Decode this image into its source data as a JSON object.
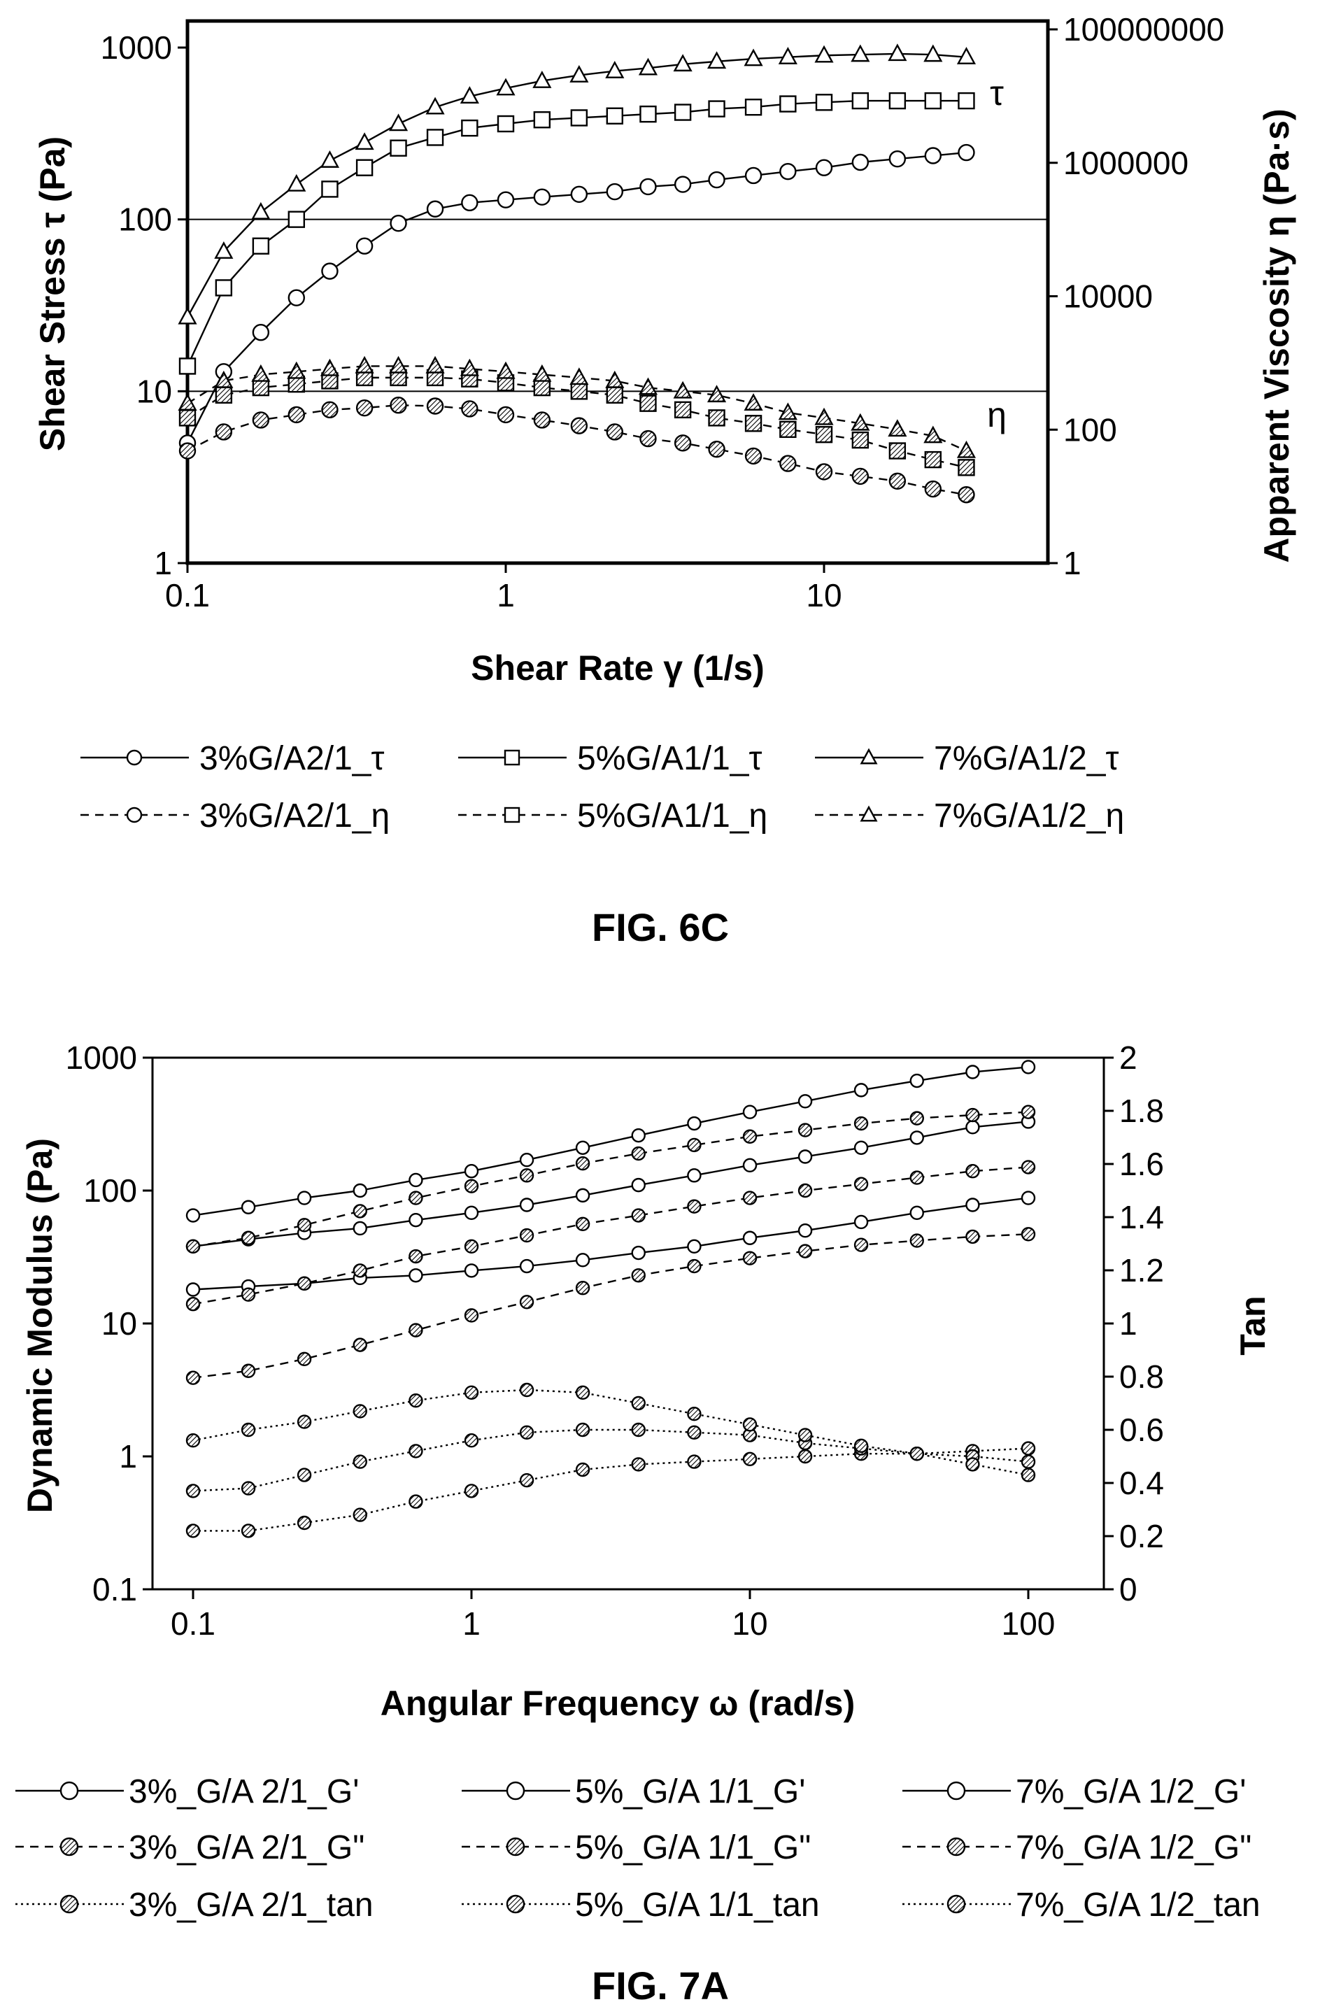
{
  "figures": {
    "fig6c_caption": "FIG. 6C",
    "fig7a_caption": "FIG. 7A"
  },
  "chart_data": [
    {
      "type": "line",
      "xlabel": "Shear Rate γ (1/s)",
      "ylabel": "Shear Stress τ (Pa)",
      "y2label": "Apparent Viscosity η (Pa·s)",
      "xscale": "log",
      "yscale": "log",
      "y2scale": "log",
      "xlim": [
        0.1,
        30
      ],
      "ylim": [
        1,
        1200
      ],
      "y2lim": [
        1,
        100000000
      ],
      "xticks": [
        "0.1",
        "1",
        "10"
      ],
      "yticks": [
        "1",
        "10",
        "100",
        "1000"
      ],
      "y2ticks": [
        "1",
        "100",
        "10000",
        "1000000",
        "100000000"
      ],
      "gridlines_y": [
        10,
        100
      ],
      "annotations": [
        "τ",
        "η"
      ],
      "legend_position": "below",
      "series": [
        {
          "name": "3%G/A2/1_τ",
          "marker": "circle",
          "line": "solid",
          "x": [
            0.1,
            0.13,
            0.17,
            0.22,
            0.28,
            0.36,
            0.46,
            0.6,
            0.77,
            1,
            1.3,
            1.7,
            2.2,
            2.8,
            3.6,
            4.6,
            6,
            7.7,
            10,
            13,
            17,
            22,
            28
          ],
          "y": [
            5,
            13,
            22,
            35,
            50,
            70,
            95,
            115,
            125,
            130,
            135,
            140,
            145,
            155,
            160,
            170,
            180,
            190,
            200,
            215,
            225,
            235,
            245
          ]
        },
        {
          "name": "5%G/A1/1_τ",
          "marker": "square",
          "line": "solid",
          "x": [
            0.1,
            0.13,
            0.17,
            0.22,
            0.28,
            0.36,
            0.46,
            0.6,
            0.77,
            1,
            1.3,
            1.7,
            2.2,
            2.8,
            3.6,
            4.6,
            6,
            7.7,
            10,
            13,
            17,
            22,
            28
          ],
          "y": [
            14,
            40,
            70,
            100,
            150,
            200,
            260,
            300,
            340,
            360,
            380,
            390,
            400,
            410,
            420,
            440,
            450,
            470,
            480,
            490,
            490,
            490,
            490
          ]
        },
        {
          "name": "7%G/A1/2_τ",
          "marker": "triangle",
          "line": "solid",
          "x": [
            0.1,
            0.13,
            0.17,
            0.22,
            0.28,
            0.36,
            0.46,
            0.6,
            0.77,
            1,
            1.3,
            1.7,
            2.2,
            2.8,
            3.6,
            4.6,
            6,
            7.7,
            10,
            13,
            17,
            22,
            28
          ],
          "y": [
            27,
            65,
            110,
            160,
            220,
            280,
            360,
            450,
            520,
            580,
            640,
            690,
            730,
            760,
            800,
            830,
            860,
            880,
            900,
            910,
            920,
            910,
            880
          ]
        },
        {
          "name": "3%G/A2/1_η",
          "marker": "hatched-circle",
          "line": "dashed",
          "x": [
            0.1,
            0.13,
            0.17,
            0.22,
            0.28,
            0.36,
            0.46,
            0.6,
            0.77,
            1,
            1.3,
            1.7,
            2.2,
            2.8,
            3.6,
            4.6,
            6,
            7.7,
            10,
            13,
            17,
            22,
            28
          ],
          "y": [
            4.5,
            5.8,
            6.8,
            7.3,
            7.8,
            8,
            8.3,
            8.2,
            7.9,
            7.3,
            6.8,
            6.3,
            5.8,
            5.3,
            5,
            4.6,
            4.2,
            3.8,
            3.4,
            3.2,
            3,
            2.7,
            2.5
          ]
        },
        {
          "name": "5%G/A1/1_η",
          "marker": "hatched-square",
          "line": "dashed",
          "x": [
            0.1,
            0.13,
            0.17,
            0.22,
            0.28,
            0.36,
            0.46,
            0.6,
            0.77,
            1,
            1.3,
            1.7,
            2.2,
            2.8,
            3.6,
            4.6,
            6,
            7.7,
            10,
            13,
            17,
            22,
            28
          ],
          "y": [
            7,
            9.5,
            10.5,
            11,
            11.5,
            12,
            12,
            12,
            11.8,
            11.2,
            10.5,
            10,
            9.5,
            8.5,
            7.8,
            7,
            6.5,
            6,
            5.6,
            5.2,
            4.5,
            4,
            3.6
          ]
        },
        {
          "name": "7%G/A1/2_η",
          "marker": "hatched-triangle",
          "line": "dashed",
          "x": [
            0.1,
            0.13,
            0.17,
            0.22,
            0.28,
            0.36,
            0.46,
            0.6,
            0.77,
            1,
            1.3,
            1.7,
            2.2,
            2.8,
            3.6,
            4.6,
            6,
            7.7,
            10,
            13,
            17,
            22,
            28
          ],
          "y": [
            8.5,
            11.5,
            12.5,
            13,
            13.5,
            14,
            14,
            14,
            13.5,
            13,
            12.5,
            12,
            11.5,
            10.5,
            10,
            9.5,
            8.5,
            7.5,
            7,
            6.5,
            6,
            5.5,
            4.5
          ]
        }
      ]
    },
    {
      "type": "line",
      "xlabel": "Angular Frequency ω (rad/s)",
      "ylabel": "Dynamic Modulus (Pa)",
      "y2label": "Tan",
      "xscale": "log",
      "yscale": "log",
      "y2scale": "linear",
      "xlim": [
        0.1,
        100
      ],
      "ylim": [
        0.1,
        1000
      ],
      "y2lim": [
        0,
        2
      ],
      "xticks": [
        "0.1",
        "1",
        "10",
        "100"
      ],
      "yticks": [
        "0.1",
        "1",
        "10",
        "100",
        "1000"
      ],
      "y2ticks": [
        "0",
        "0.2",
        "0.4",
        "0.6",
        "0.8",
        "1",
        "1.2",
        "1.4",
        "1.6",
        "1.8",
        "2"
      ],
      "legend_position": "below",
      "series": [
        {
          "name": "3%_G/A 2/1_G'",
          "marker": "circle",
          "line": "solid",
          "axis": "left",
          "x": [
            0.1,
            0.158,
            0.251,
            0.398,
            0.631,
            1,
            1.58,
            2.51,
            3.98,
            6.31,
            10,
            15.8,
            25.1,
            39.8,
            63.1,
            100
          ],
          "y": [
            18,
            19,
            20,
            22,
            23,
            25,
            27,
            30,
            34,
            38,
            44,
            50,
            58,
            68,
            78,
            88
          ]
        },
        {
          "name": "5%_G/A 1/1_G'",
          "marker": "circle",
          "line": "solid",
          "axis": "left",
          "x": [
            0.1,
            0.158,
            0.251,
            0.398,
            0.631,
            1,
            1.58,
            2.51,
            3.98,
            6.31,
            10,
            15.8,
            25.1,
            39.8,
            63.1,
            100
          ],
          "y": [
            38,
            43,
            48,
            52,
            60,
            68,
            78,
            92,
            110,
            130,
            155,
            180,
            210,
            250,
            300,
            330
          ]
        },
        {
          "name": "7%_G/A 1/2_G'",
          "marker": "circle",
          "line": "solid",
          "axis": "left",
          "x": [
            0.1,
            0.158,
            0.251,
            0.398,
            0.631,
            1,
            1.58,
            2.51,
            3.98,
            6.31,
            10,
            15.8,
            25.1,
            39.8,
            63.1,
            100
          ],
          "y": [
            65,
            75,
            88,
            100,
            120,
            140,
            170,
            210,
            260,
            320,
            390,
            470,
            570,
            670,
            780,
            850
          ]
        },
        {
          "name": "3%_G/A 2/1_G\"",
          "marker": "hatched-circle",
          "line": "dashed",
          "axis": "left",
          "x": [
            0.1,
            0.158,
            0.251,
            0.398,
            0.631,
            1,
            1.58,
            2.51,
            3.98,
            6.31,
            10,
            15.8,
            25.1,
            39.8,
            63.1,
            100
          ],
          "y": [
            3.9,
            4.4,
            5.4,
            6.9,
            8.9,
            11.5,
            14.5,
            18.5,
            23,
            27,
            31,
            35,
            39,
            42,
            45,
            47
          ]
        },
        {
          "name": "5%_G/A 1/1_G\"",
          "marker": "hatched-circle",
          "line": "dashed",
          "axis": "left",
          "x": [
            0.1,
            0.158,
            0.251,
            0.398,
            0.631,
            1,
            1.58,
            2.51,
            3.98,
            6.31,
            10,
            15.8,
            25.1,
            39.8,
            63.1,
            100
          ],
          "y": [
            14,
            16.5,
            20,
            25,
            32,
            38,
            46,
            56,
            65,
            76,
            88,
            100,
            112,
            125,
            140,
            150
          ]
        },
        {
          "name": "7%_G/A 1/2_G\"",
          "marker": "hatched-circle",
          "line": "dashed",
          "axis": "left",
          "x": [
            0.1,
            0.158,
            0.251,
            0.398,
            0.631,
            1,
            1.58,
            2.51,
            3.98,
            6.31,
            10,
            15.8,
            25.1,
            39.8,
            63.1,
            100
          ],
          "y": [
            38,
            44,
            55,
            70,
            88,
            108,
            130,
            160,
            190,
            220,
            255,
            285,
            320,
            350,
            370,
            390
          ]
        },
        {
          "name": "3%_G/A 2/1_tan",
          "marker": "hatched-circle",
          "line": "dotted",
          "axis": "right",
          "x": [
            0.1,
            0.158,
            0.251,
            0.398,
            0.631,
            1,
            1.58,
            2.51,
            3.98,
            6.31,
            10,
            15.8,
            25.1,
            39.8,
            63.1,
            100
          ],
          "y": [
            0.22,
            0.22,
            0.25,
            0.28,
            0.33,
            0.37,
            0.41,
            0.45,
            0.47,
            0.48,
            0.49,
            0.5,
            0.51,
            0.51,
            0.52,
            0.53
          ]
        },
        {
          "name": "5%_G/A 1/1_tan",
          "marker": "hatched-circle",
          "line": "dotted",
          "axis": "right",
          "x": [
            0.1,
            0.158,
            0.251,
            0.398,
            0.631,
            1,
            1.58,
            2.51,
            3.98,
            6.31,
            10,
            15.8,
            25.1,
            39.8,
            63.1,
            100
          ],
          "y": [
            0.37,
            0.38,
            0.43,
            0.48,
            0.52,
            0.56,
            0.59,
            0.6,
            0.6,
            0.59,
            0.58,
            0.55,
            0.53,
            0.51,
            0.5,
            0.48
          ]
        },
        {
          "name": "7%_G/A 1/2_tan",
          "marker": "hatched-circle",
          "line": "dotted",
          "axis": "right",
          "x": [
            0.1,
            0.158,
            0.251,
            0.398,
            0.631,
            1,
            1.58,
            2.51,
            3.98,
            6.31,
            10,
            15.8,
            25.1,
            39.8,
            63.1,
            100
          ],
          "y": [
            0.56,
            0.6,
            0.63,
            0.67,
            0.71,
            0.74,
            0.75,
            0.74,
            0.7,
            0.66,
            0.62,
            0.58,
            0.54,
            0.51,
            0.47,
            0.43
          ]
        }
      ]
    }
  ]
}
